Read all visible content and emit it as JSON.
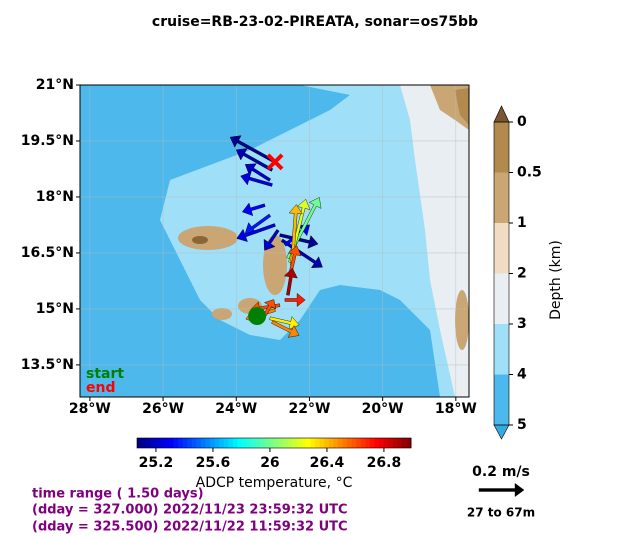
{
  "chart_data": {
    "type": "quiver-map",
    "title": "cruise=RB-23-02-PIREATA,   sonar=os75bb",
    "xlim": [
      -28.27,
      -17.64
    ],
    "ylim": [
      12.64,
      21
    ],
    "xticks": [
      {
        "value": -28,
        "label": "28°W"
      },
      {
        "value": -26,
        "label": "26°W"
      },
      {
        "value": -24,
        "label": "24°W"
      },
      {
        "value": -22,
        "label": "22°W"
      },
      {
        "value": -20,
        "label": "20°W"
      },
      {
        "value": -18,
        "label": "18°W"
      }
    ],
    "yticks": [
      {
        "value": 13.5,
        "label": "13.5°N"
      },
      {
        "value": 15,
        "label": "15°N"
      },
      {
        "value": 16.5,
        "label": "16.5°N"
      },
      {
        "value": 18,
        "label": "18°N"
      },
      {
        "value": 19.5,
        "label": "19.5°N"
      },
      {
        "value": 21,
        "label": "21°N"
      }
    ],
    "grid": true,
    "depth_colorbar": {
      "label": "Depth (km)",
      "ticks": [
        0,
        0.5,
        1,
        2,
        3,
        4,
        5
      ],
      "colors": [
        "#b38a4e",
        "#c9a673",
        "#f0dcc4",
        "#e8eef2",
        "#9fdff8",
        "#4cb8ec"
      ],
      "over_color": "#7a5630",
      "under_color": "#37a8e0"
    },
    "temp_colorbar": {
      "label": "ADCP temperature, °C",
      "lim": [
        25.067,
        26.99
      ],
      "ticks": [
        25.2,
        25.6,
        26.0,
        26.4,
        26.8
      ]
    },
    "start": {
      "label": "start",
      "color": "#008000",
      "lon": -23.43,
      "lat": 14.81
    },
    "end": {
      "label": "end",
      "color": "#ff0000",
      "lon": -22.94,
      "lat": 18.94
    },
    "scale": {
      "value": 0.2,
      "label": "0.2 m/s",
      "depth_range": "27 to 67m"
    },
    "time_text": [
      "time range ( 1.50 days)",
      "(dday = 327.000) 2022/11/23 23:59:32 UTC",
      "(dday = 325.500) 2022/11/22 11:59:32 UTC"
    ],
    "vectors": {
      "lon": [
        -22.94,
        -23.02,
        -23.08,
        -23.02,
        -23.22,
        -23.08,
        -22.94,
        -22.86,
        -22.81,
        -22.75,
        -22.67,
        -22.59,
        -22.53,
        -22.48,
        -22.53,
        -22.59,
        -22.67,
        -22.81,
        -22.94,
        -23.08,
        -23.02,
        -23.22
      ],
      "lat": [
        18.94,
        18.72,
        18.45,
        18.32,
        17.78,
        17.51,
        17.25,
        17.11,
        16.98,
        16.84,
        16.71,
        16.36,
        16.25,
        16.17,
        15.91,
        15.37,
        15.24,
        15.1,
        14.97,
        14.75,
        14.65,
        14.83
      ],
      "u": [
        -0.2,
        -0.16,
        -0.11,
        -0.14,
        -0.1,
        -0.11,
        -0.17,
        -0.06,
        0.17,
        0.18,
        0.11,
        0.14,
        0.07,
        0.02,
        0.03,
        0.02,
        0.09,
        -0.13,
        -0.13,
        0.13,
        0.12,
        0.04
      ],
      "v": [
        0.11,
        0.09,
        0.07,
        0.04,
        -0.03,
        -0.08,
        -0.06,
        -0.09,
        -0.04,
        -0.12,
        0.09,
        0.27,
        0.28,
        0.27,
        0.13,
        0.12,
        0,
        -0.02,
        -0.04,
        -0.03,
        -0.06,
        0.07
      ],
      "temp": [
        25.1,
        25.15,
        25.2,
        25.25,
        25.3,
        25.35,
        25.25,
        25.2,
        25.1,
        25.15,
        25.3,
        26.0,
        26.2,
        26.4,
        26.6,
        26.9,
        26.7,
        26.6,
        26.5,
        26.3,
        26.5,
        26.6
      ]
    }
  }
}
